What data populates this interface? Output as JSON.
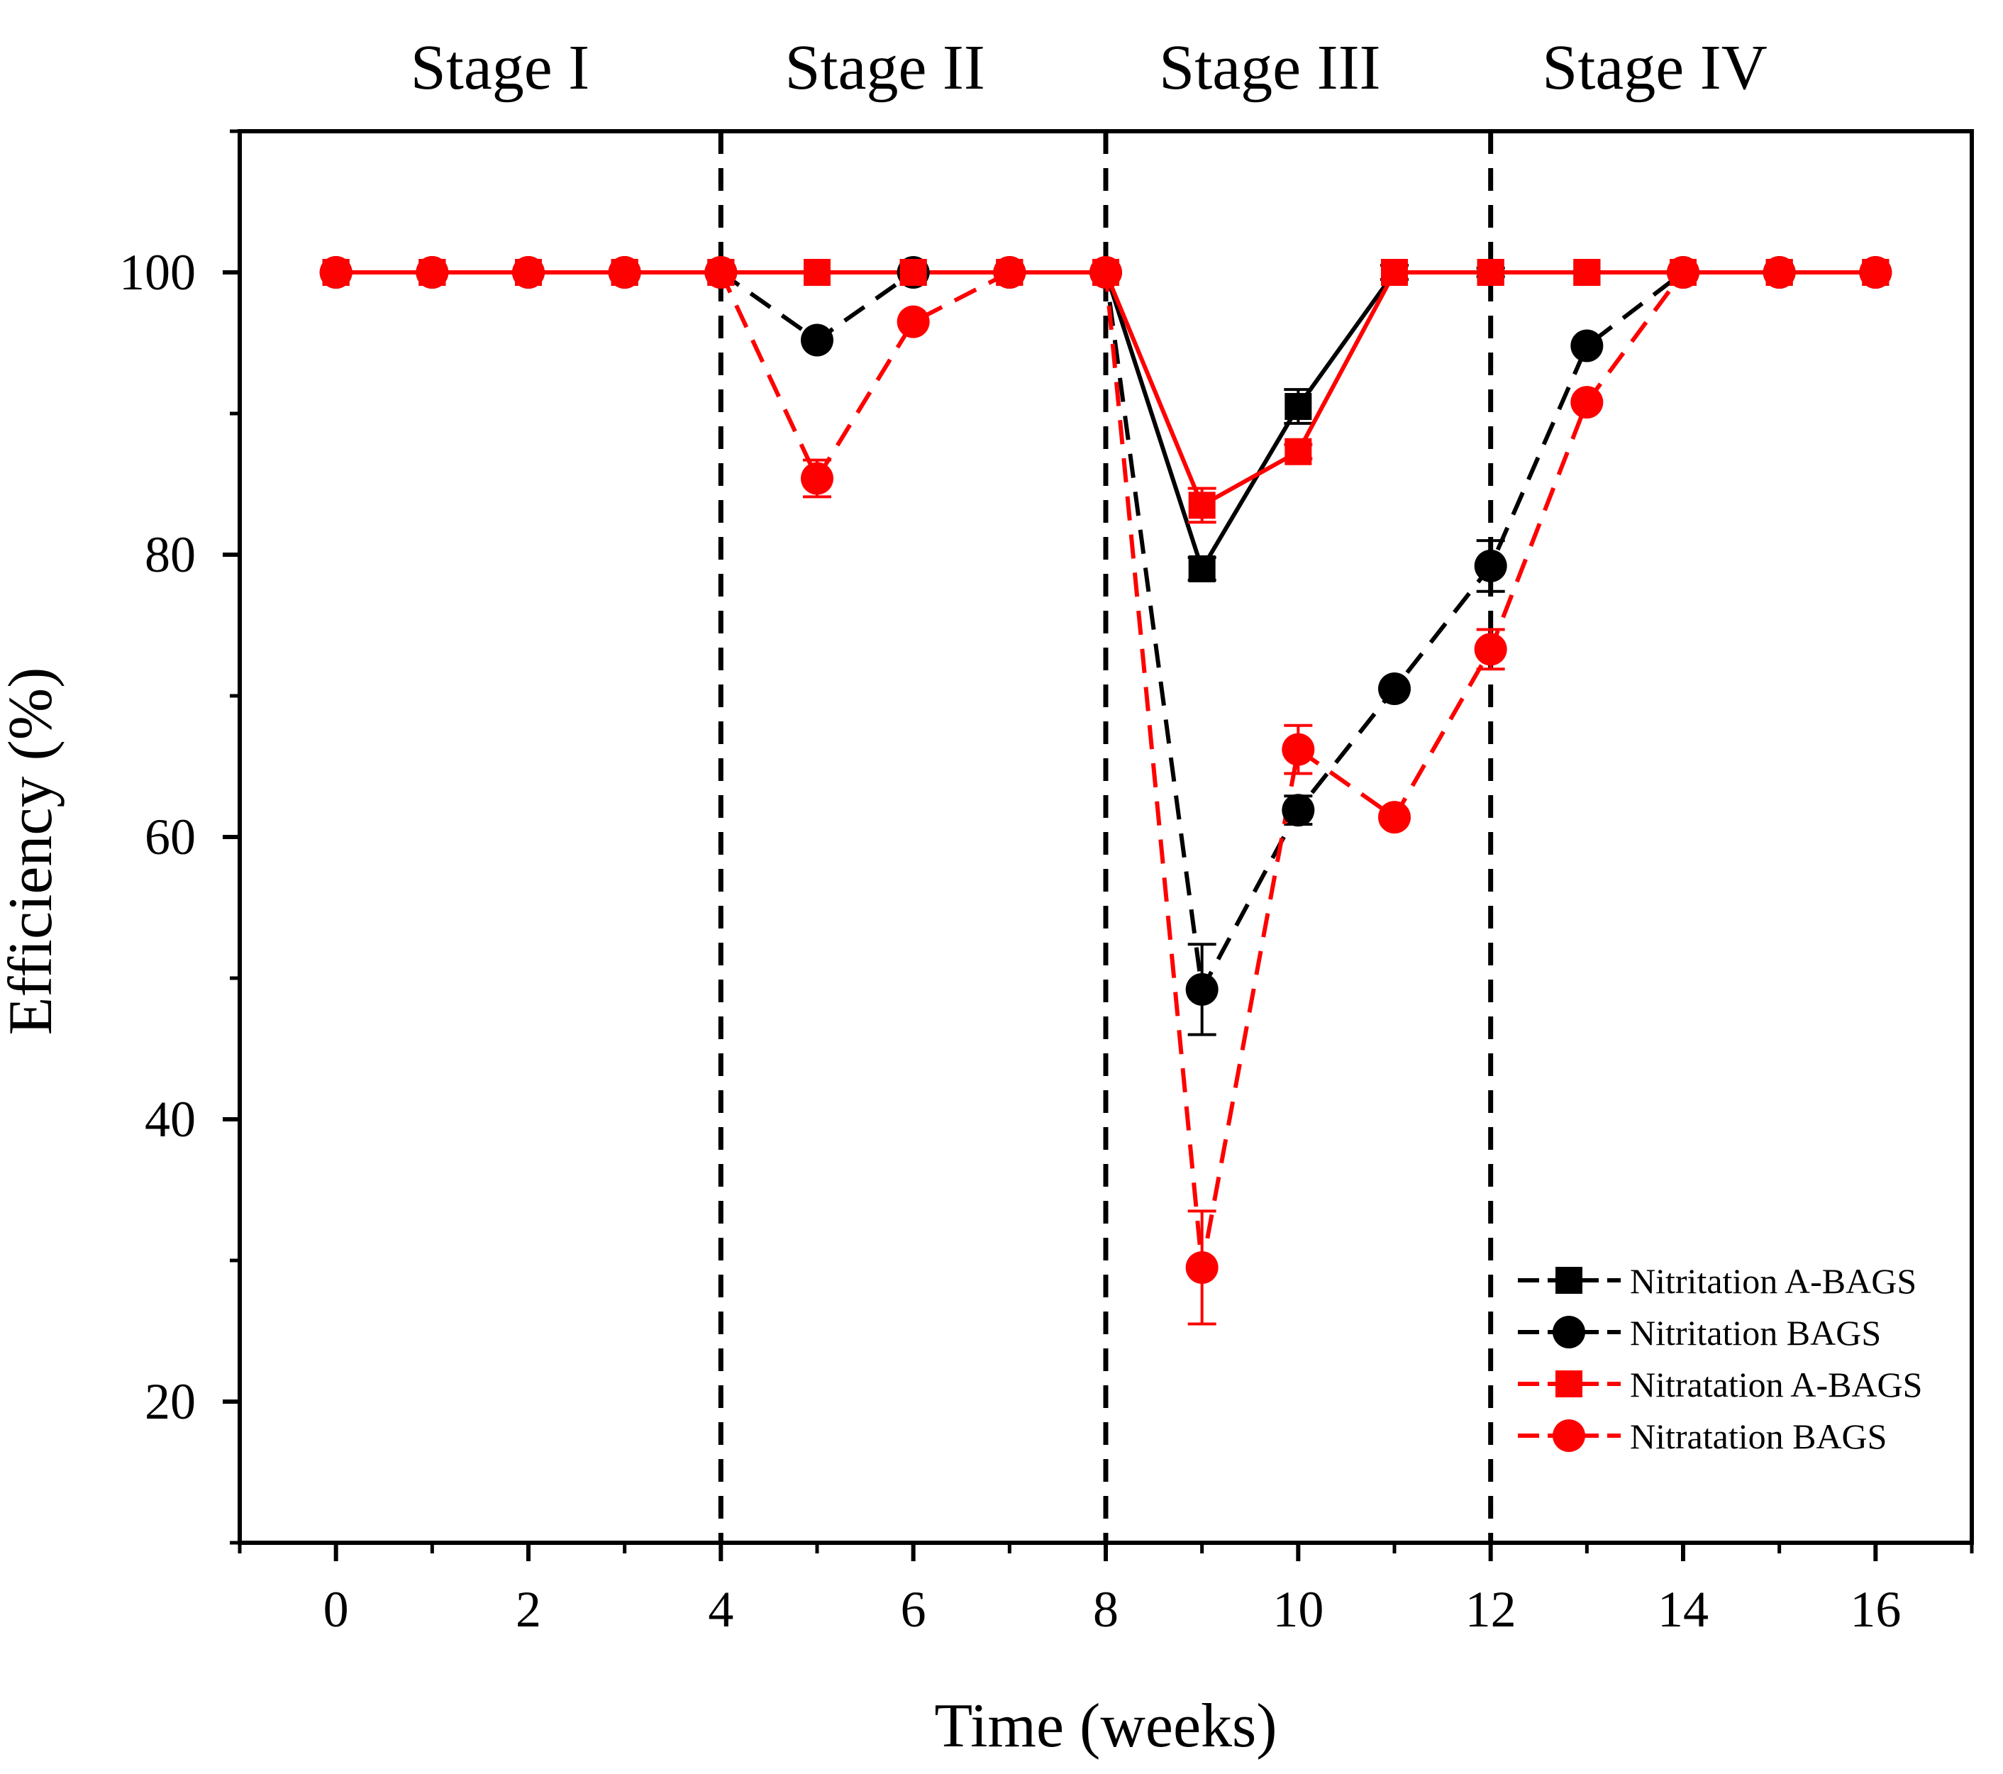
{
  "chart_data": {
    "type": "line",
    "title": "",
    "xlabel": "Time (weeks)",
    "ylabel": "Efficiency (%)",
    "xlim": [
      -1,
      17
    ],
    "ylim": [
      10,
      110
    ],
    "xticks": [
      0,
      2,
      4,
      6,
      8,
      10,
      12,
      14,
      16
    ],
    "xminor": [
      1,
      3,
      5,
      7,
      9,
      11,
      13,
      15
    ],
    "yticks": [
      20,
      40,
      60,
      80,
      100
    ],
    "yminor": [
      30,
      50,
      70,
      90
    ],
    "stage_boundaries": [
      4,
      8,
      12
    ],
    "stages": [
      {
        "label": "Stage I",
        "x": 2
      },
      {
        "label": "Stage II",
        "x": 6
      },
      {
        "label": "Stage III",
        "x": 10
      },
      {
        "label": "Stage IV",
        "x": 14
      }
    ],
    "legend_position": "bottom-right",
    "series": [
      {
        "name": "Nitritation A-BAGS",
        "color": "#000000",
        "marker": "square",
        "dash": "solid",
        "x": [
          0,
          1,
          2,
          3,
          4,
          5,
          6,
          7,
          8,
          9,
          10,
          11,
          12,
          13,
          14,
          15,
          16
        ],
        "values": [
          100,
          100,
          100,
          100,
          100,
          100,
          100,
          100,
          100,
          79,
          90.5,
          100,
          100,
          100,
          100,
          100,
          100
        ],
        "errors": [
          0,
          0,
          0,
          0,
          0,
          0,
          0,
          0,
          0,
          0.8,
          1.2,
          0.5,
          0.3,
          0,
          0,
          0,
          0
        ]
      },
      {
        "name": "Nitritation BAGS",
        "color": "#000000",
        "marker": "circle",
        "dash": "dashed",
        "x": [
          0,
          1,
          2,
          3,
          4,
          5,
          6,
          7,
          8,
          9,
          10,
          11,
          12,
          13,
          14,
          15,
          16
        ],
        "values": [
          100,
          100,
          100,
          100,
          100,
          95.2,
          100,
          100,
          100,
          49.2,
          61.9,
          70.5,
          79.2,
          94.8,
          100,
          100,
          100
        ],
        "errors": [
          0,
          0,
          0,
          0,
          0,
          0,
          0,
          0,
          0,
          3.2,
          1.0,
          0.5,
          1.8,
          0.5,
          0,
          0,
          0
        ]
      },
      {
        "name": "Nitratation A-BAGS",
        "color": "#ff0000",
        "marker": "square",
        "dash": "solid",
        "x": [
          0,
          1,
          2,
          3,
          4,
          5,
          6,
          7,
          8,
          9,
          10,
          11,
          12,
          13,
          14,
          15,
          16
        ],
        "values": [
          100,
          100,
          100,
          100,
          100,
          100,
          100,
          100,
          100,
          83.5,
          87.3,
          100,
          100,
          100,
          100,
          100,
          100
        ],
        "errors": [
          0,
          0,
          0,
          0,
          0,
          0,
          0,
          0,
          0,
          1.2,
          0.5,
          0,
          0,
          0,
          0,
          0,
          0
        ]
      },
      {
        "name": "Nitratation BAGS",
        "color": "#ff0000",
        "marker": "circle",
        "dash": "dashed",
        "x": [
          0,
          1,
          2,
          3,
          4,
          5,
          6,
          7,
          8,
          9,
          10,
          11,
          12,
          13,
          14,
          15,
          16
        ],
        "values": [
          100,
          100,
          100,
          100,
          100,
          85.4,
          96.5,
          100,
          100,
          29.5,
          66.2,
          61.4,
          73.3,
          90.8,
          100,
          100,
          100
        ],
        "errors": [
          0,
          0,
          0,
          0,
          0,
          1.3,
          0,
          0,
          0,
          4.0,
          1.7,
          0.5,
          1.4,
          0,
          0,
          0,
          0
        ]
      }
    ]
  }
}
